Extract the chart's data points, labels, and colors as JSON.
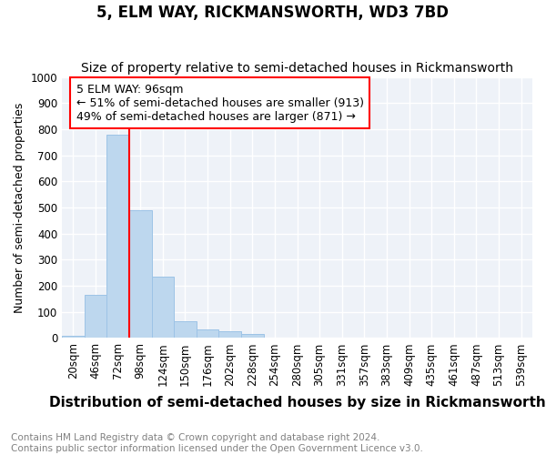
{
  "title": "5, ELM WAY, RICKMANSWORTH, WD3 7BD",
  "subtitle": "Size of property relative to semi-detached houses in Rickmansworth",
  "xlabel": "Distribution of semi-detached houses by size in Rickmansworth",
  "ylabel": "Number of semi-detached properties",
  "footer": "Contains HM Land Registry data © Crown copyright and database right 2024.\nContains public sector information licensed under the Open Government Licence v3.0.",
  "bin_labels": [
    "20sqm",
    "46sqm",
    "72sqm",
    "98sqm",
    "124sqm",
    "150sqm",
    "176sqm",
    "202sqm",
    "228sqm",
    "254sqm",
    "280sqm",
    "305sqm",
    "331sqm",
    "357sqm",
    "383sqm",
    "409sqm",
    "435sqm",
    "461sqm",
    "487sqm",
    "513sqm",
    "539sqm"
  ],
  "bar_values": [
    10,
    165,
    780,
    490,
    235,
    65,
    32,
    25,
    15,
    0,
    0,
    0,
    0,
    0,
    0,
    0,
    0,
    0,
    0,
    0,
    0
  ],
  "bar_color": "#bdd7ee",
  "bar_edge_color": "#9dc3e6",
  "red_line_bin_index": 3,
  "annotation_title": "5 ELM WAY: 96sqm",
  "annotation_line1": "← 51% of semi-detached houses are smaller (913)",
  "annotation_line2": "49% of semi-detached houses are larger (871) →",
  "ylim": [
    0,
    1000
  ],
  "yticks": [
    0,
    100,
    200,
    300,
    400,
    500,
    600,
    700,
    800,
    900,
    1000
  ],
  "title_fontsize": 12,
  "subtitle_fontsize": 10,
  "annotation_fontsize": 9,
  "tick_fontsize": 8.5,
  "ylabel_fontsize": 9,
  "xlabel_fontsize": 11,
  "footer_fontsize": 7.5,
  "grid_color": "#d0d8e8",
  "background_color": "#eef2f8"
}
